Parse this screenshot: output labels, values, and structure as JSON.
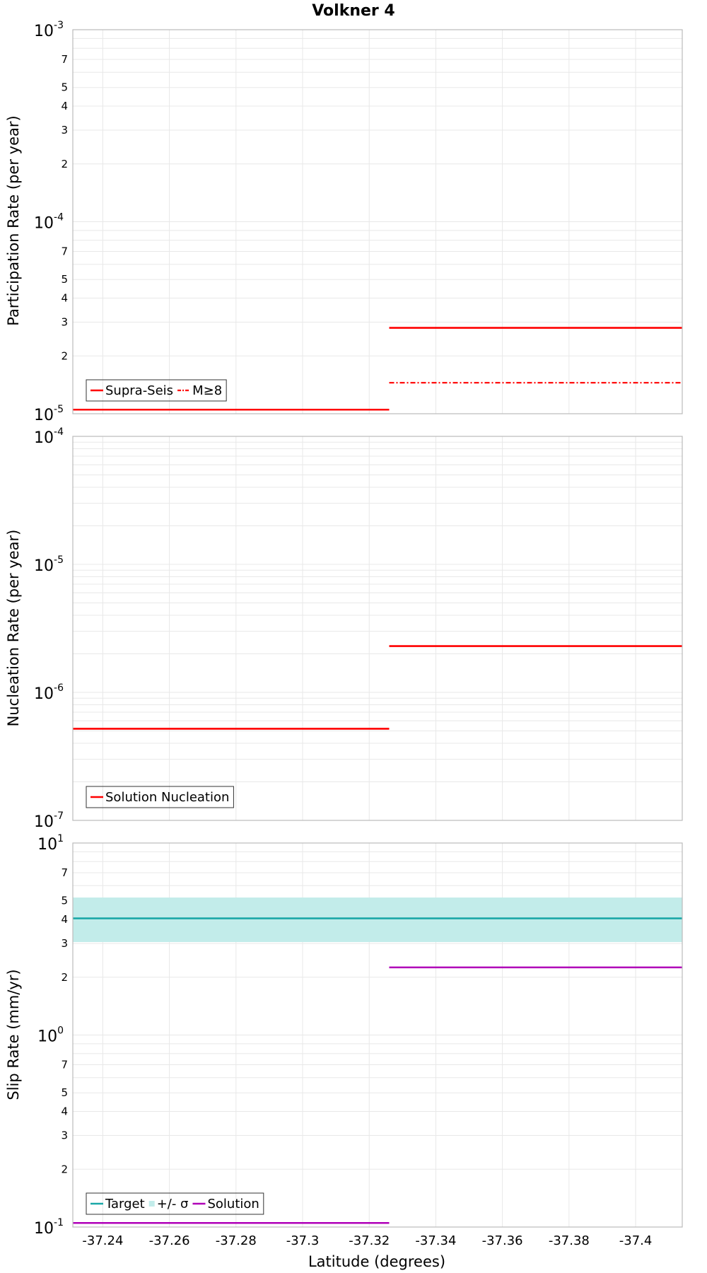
{
  "title": "Volkner 4",
  "colors": {
    "red": "#ff0000",
    "teal": "#1aa8a8",
    "band": "#c2ecea",
    "magenta": "#b000b8",
    "grid": "#e8e8e8",
    "frame": "#bbbbbb"
  },
  "chart_data": [
    {
      "type": "line",
      "id": "participation",
      "ylabel": "Participation Rate (per year)",
      "yscale": "log",
      "ylim": [
        1e-05,
        0.001
      ],
      "xlim": [
        -37.231,
        -37.414
      ],
      "decade_labels": [
        {
          "value": 0.001,
          "base": "10",
          "exp": "-3"
        },
        {
          "value": 0.0001,
          "base": "10",
          "exp": "-4"
        },
        {
          "value": 1e-05,
          "base": "10",
          "exp": "-5"
        }
      ],
      "minor_labels": [
        "2",
        "3",
        "4",
        "5",
        "7"
      ],
      "series": [
        {
          "name": "Supra-Seis",
          "style": "solid",
          "color": "#ff0000",
          "segments": [
            {
              "x": [
                -37.231,
                -37.326
              ],
              "y": 1.05e-05
            },
            {
              "x": [
                -37.326,
                -37.414
              ],
              "y": 2.8e-05
            }
          ]
        },
        {
          "name": "M≥8",
          "style": "dashdot",
          "color": "#ff0000",
          "segments": [
            {
              "x": [
                -37.231,
                -37.326
              ],
              "y": 1.05e-05
            },
            {
              "x": [
                -37.326,
                -37.414
              ],
              "y": 1.45e-05
            }
          ]
        }
      ],
      "legend": [
        {
          "label": "Supra-Seis",
          "kind": "solid",
          "color": "#ff0000"
        },
        {
          "label": "M≥8",
          "kind": "dashdot",
          "color": "#ff0000"
        }
      ],
      "legend_position": "bottom-left"
    },
    {
      "type": "line",
      "id": "nucleation",
      "ylabel": "Nucleation Rate (per year)",
      "yscale": "log",
      "ylim": [
        1e-07,
        0.0001
      ],
      "xlim": [
        -37.231,
        -37.414
      ],
      "decade_labels": [
        {
          "value": 0.0001,
          "base": "10",
          "exp": "-4"
        },
        {
          "value": 1e-05,
          "base": "10",
          "exp": "-5"
        },
        {
          "value": 1e-06,
          "base": "10",
          "exp": "-6"
        },
        {
          "value": 1e-07,
          "base": "10",
          "exp": "-7"
        }
      ],
      "minor_labels": [],
      "series": [
        {
          "name": "Solution Nucleation",
          "style": "solid",
          "color": "#ff0000",
          "segments": [
            {
              "x": [
                -37.231,
                -37.326
              ],
              "y": 5.2e-07
            },
            {
              "x": [
                -37.326,
                -37.414
              ],
              "y": 2.3e-06
            }
          ]
        }
      ],
      "legend": [
        {
          "label": "Solution Nucleation",
          "kind": "solid",
          "color": "#ff0000"
        }
      ],
      "legend_position": "bottom-left"
    },
    {
      "type": "line",
      "id": "sliprate",
      "ylabel": "Slip Rate (mm/yr)",
      "xlabel": "Latitude (degrees)",
      "yscale": "log",
      "ylim": [
        0.1,
        10
      ],
      "xlim": [
        -37.231,
        -37.414
      ],
      "decade_labels": [
        {
          "value": 10,
          "base": "10",
          "exp": "1"
        },
        {
          "value": 1,
          "base": "10",
          "exp": "0"
        },
        {
          "value": 0.1,
          "base": "10",
          "exp": "-1"
        }
      ],
      "minor_labels": [
        "2",
        "3",
        "4",
        "5",
        "7"
      ],
      "band": {
        "name": "+/- σ",
        "lower": 3.05,
        "upper": 5.2,
        "color": "#c2ecea"
      },
      "series": [
        {
          "name": "Target",
          "style": "solid",
          "color": "#1aa8a8",
          "segments": [
            {
              "x": [
                -37.231,
                -37.414
              ],
              "y": 4.05
            }
          ]
        },
        {
          "name": "Solution",
          "style": "solid",
          "color": "#b000b8",
          "segments": [
            {
              "x": [
                -37.231,
                -37.326
              ],
              "y": 0.105
            },
            {
              "x": [
                -37.326,
                -37.414
              ],
              "y": 2.25
            }
          ]
        }
      ],
      "legend": [
        {
          "label": "Target",
          "kind": "solid",
          "color": "#1aa8a8"
        },
        {
          "label": "+/- σ",
          "kind": "band",
          "color": "#c2ecea"
        },
        {
          "label": "Solution",
          "kind": "solid",
          "color": "#b000b8"
        }
      ],
      "legend_position": "bottom-left",
      "xticks": [
        -37.24,
        -37.26,
        -37.28,
        -37.3,
        -37.32,
        -37.34,
        -37.36,
        -37.38,
        -37.4
      ],
      "xtick_labels": [
        "-37.24",
        "-37.26",
        "-37.28",
        "-37.3",
        "-37.32",
        "-37.34",
        "-37.36",
        "-37.38",
        "-37.4"
      ]
    }
  ]
}
